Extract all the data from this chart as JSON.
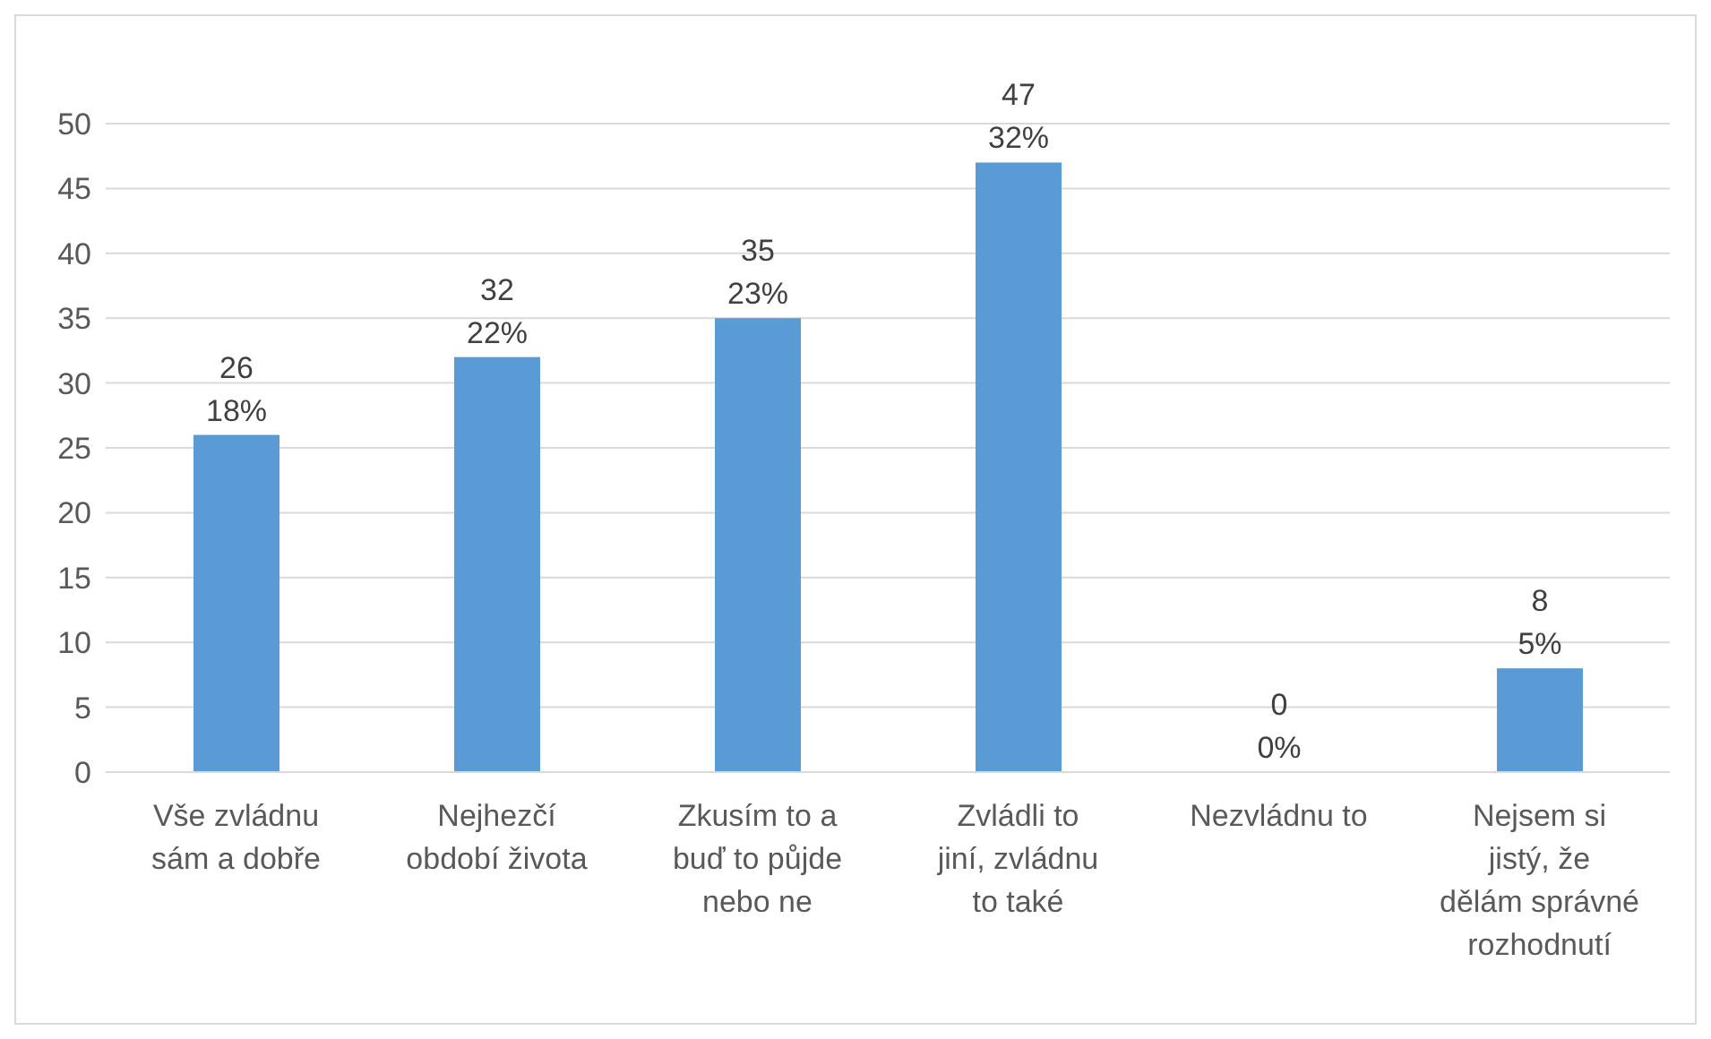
{
  "chart_data": {
    "type": "bar",
    "categories": [
      "Vše zvládnu sám a dobře",
      "Nejhezčí období života",
      "Zkusím to a buď to půjde nebo ne",
      "Zvládli to jiní, zvládnu to také",
      "Nezvládnu to",
      "Nejsem si jistý, že dělám správné rozhodnutí"
    ],
    "values": [
      26,
      32,
      35,
      47,
      0,
      8
    ],
    "value_labels": [
      "26\n18%",
      "32\n22%",
      "35\n23%",
      "47\n32%",
      "0\n0%",
      "8\n5%"
    ],
    "color": "#5b9bd5",
    "ylim": [
      0,
      50
    ],
    "yticks": [
      0,
      5,
      10,
      15,
      20,
      25,
      30,
      35,
      40,
      45,
      50
    ],
    "grid": "y"
  }
}
